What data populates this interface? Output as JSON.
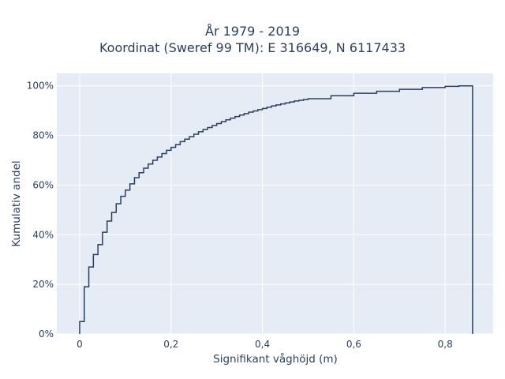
{
  "chart_data": {
    "type": "line",
    "title_lines": [
      "År 1979 - 2019",
      "Koordinat (Sweref 99 TM): E 316649, N 6117433"
    ],
    "xlabel": "Signifikant våghöjd (m)",
    "ylabel": "Kumulativ andel",
    "xlim": [
      -0.05,
      0.905
    ],
    "ylim": [
      0,
      1.05
    ],
    "x_ticks": [
      0,
      0.2,
      0.4,
      0.6,
      0.8
    ],
    "x_tick_labels": [
      "0",
      "0,2",
      "0,4",
      "0,6",
      "0,8"
    ],
    "y_ticks": [
      0,
      0.2,
      0.4,
      0.6,
      0.8,
      1.0
    ],
    "y_tick_labels": [
      "0%",
      "20%",
      "40%",
      "60%",
      "80%",
      "100%"
    ],
    "grid": true,
    "series": [
      {
        "step": "post",
        "color": "#2a3f5f",
        "x": [
          0,
          0.01,
          0.02,
          0.03,
          0.04,
          0.05,
          0.06,
          0.07,
          0.08,
          0.09,
          0.1,
          0.11,
          0.12,
          0.13,
          0.14,
          0.15,
          0.16,
          0.17,
          0.18,
          0.19,
          0.2,
          0.21,
          0.22,
          0.23,
          0.24,
          0.25,
          0.26,
          0.27,
          0.28,
          0.29,
          0.3,
          0.31,
          0.32,
          0.33,
          0.34,
          0.35,
          0.36,
          0.37,
          0.38,
          0.39,
          0.4,
          0.41,
          0.42,
          0.43,
          0.44,
          0.45,
          0.46,
          0.47,
          0.48,
          0.49,
          0.5,
          0.55,
          0.6,
          0.65,
          0.7,
          0.75,
          0.8,
          0.83,
          0.86
        ],
        "y": [
          0.05,
          0.19,
          0.27,
          0.32,
          0.36,
          0.41,
          0.455,
          0.49,
          0.525,
          0.555,
          0.58,
          0.605,
          0.63,
          0.65,
          0.668,
          0.685,
          0.7,
          0.713,
          0.727,
          0.74,
          0.752,
          0.763,
          0.775,
          0.785,
          0.795,
          0.805,
          0.815,
          0.824,
          0.832,
          0.84,
          0.848,
          0.856,
          0.863,
          0.87,
          0.876,
          0.882,
          0.888,
          0.894,
          0.899,
          0.904,
          0.909,
          0.914,
          0.919,
          0.923,
          0.927,
          0.931,
          0.935,
          0.939,
          0.942,
          0.945,
          0.948,
          0.96,
          0.97,
          0.978,
          0.986,
          0.993,
          0.998,
          1.0,
          1.0
        ]
      }
    ]
  }
}
